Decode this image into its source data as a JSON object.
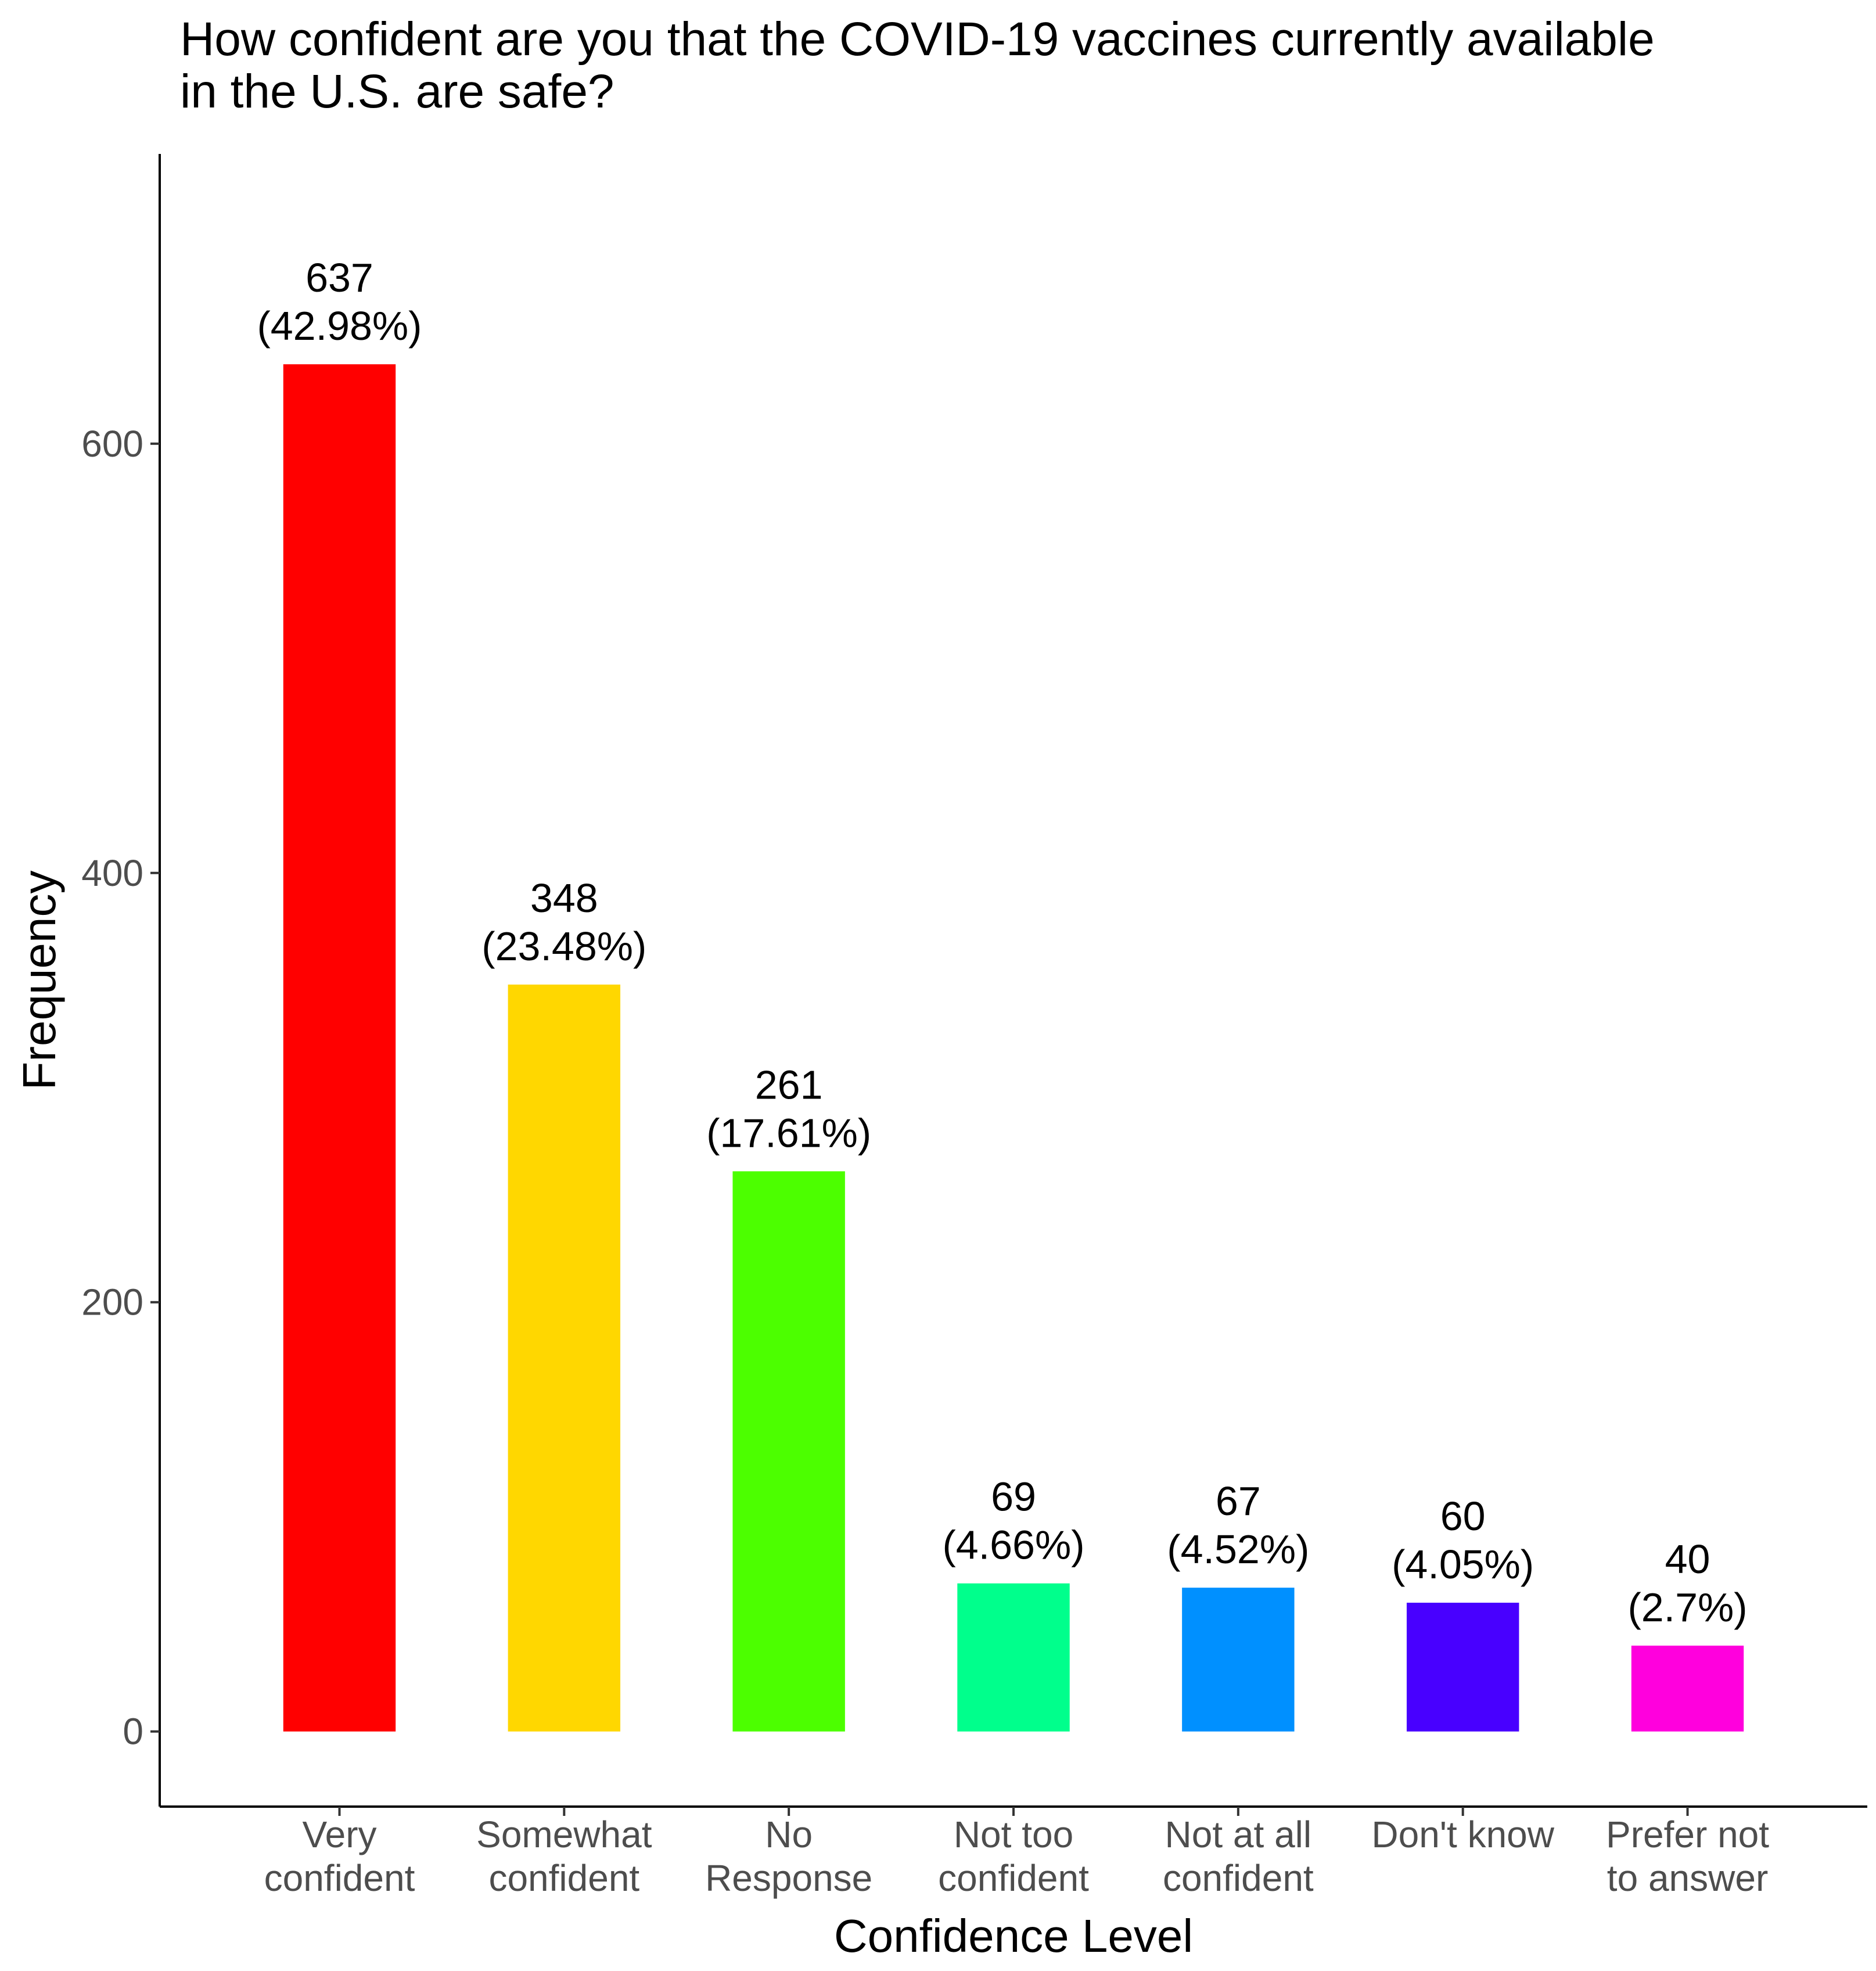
{
  "chart_data": {
    "type": "bar",
    "title_lines": [
      "How confident are you that the COVID-19 vaccines currently available",
      "in the U.S. are safe?"
    ],
    "xlabel": "Confidence Level",
    "ylabel": "Frequency",
    "ylim": [
      -35,
      735
    ],
    "yticks": [
      0,
      200,
      400,
      600
    ],
    "grid": false,
    "legend": "none",
    "categories": [
      [
        "Very",
        "confident"
      ],
      [
        "Somewhat",
        "confident"
      ],
      [
        "No",
        "Response"
      ],
      [
        "Not too",
        "confident"
      ],
      [
        "Not at all",
        "confident"
      ],
      [
        "Don't know"
      ],
      [
        "Prefer not",
        "to answer"
      ]
    ],
    "values": [
      637,
      348,
      261,
      69,
      67,
      60,
      40
    ],
    "percent_labels": [
      "(42.98%)",
      "(23.48%)",
      "(17.61%)",
      "(4.66%)",
      "(4.52%)",
      "(4.05%)",
      "(2.7%)"
    ],
    "colors": [
      "#ff0000",
      "#ffd700",
      "#4cff00",
      "#00ff8c",
      "#0090ff",
      "#4800ff",
      "#ff00dd"
    ]
  }
}
